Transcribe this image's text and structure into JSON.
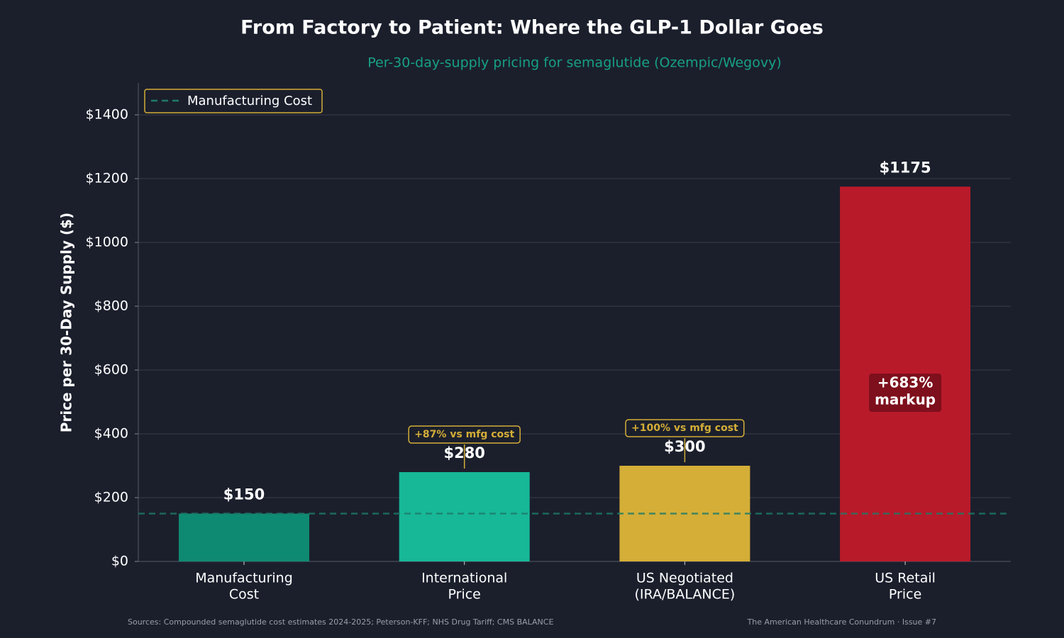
{
  "chart_data": {
    "type": "bar",
    "title": "From Factory to Patient: Where the GLP-1 Dollar Goes",
    "subtitle": "Per-30-day-supply pricing for semaglutide (Ozempic/Wegovy)",
    "y_label": "Price per 30-Day Supply ($)",
    "categories": [
      [
        "Manufacturing",
        "Cost"
      ],
      [
        "International",
        "Price"
      ],
      [
        "US Negotiated",
        "(IRA/BALANCE)"
      ],
      [
        "US Retail",
        "Price"
      ]
    ],
    "values": [
      150,
      280,
      300,
      1175
    ],
    "value_labels": [
      "$150",
      "$280",
      "$300",
      "$1175"
    ],
    "colors": [
      "#0f8a72",
      "#17b897",
      "#d4ae37",
      "#b81a2a"
    ],
    "annotations": [
      "+87% vs mfg cost",
      "+100% vs mfg cost"
    ],
    "markup_label": [
      "+683%",
      "markup"
    ],
    "reference_line": {
      "value": 150,
      "label": "Manufacturing Cost",
      "color": "#1e7a6a"
    },
    "ylim": [
      0,
      1500
    ],
    "yticks": [
      {
        "value": 0,
        "label": "$0"
      },
      {
        "value": 200,
        "label": "$200"
      },
      {
        "value": 400,
        "label": "$400"
      },
      {
        "value": 600,
        "label": "$600"
      },
      {
        "value": 800,
        "label": "$800"
      },
      {
        "value": 1000,
        "label": "$1000"
      },
      {
        "value": 1200,
        "label": "$1200"
      },
      {
        "value": 1400,
        "label": "$1400"
      }
    ],
    "grid": true,
    "legend": "upper left",
    "source": "Sources: Compounded semaglutide cost estimates 2024-2025; Peterson-KFF; NHS Drug Tariff; CMS BALANCE",
    "credit": "The American Healthcare Conundrum · Issue #7"
  }
}
